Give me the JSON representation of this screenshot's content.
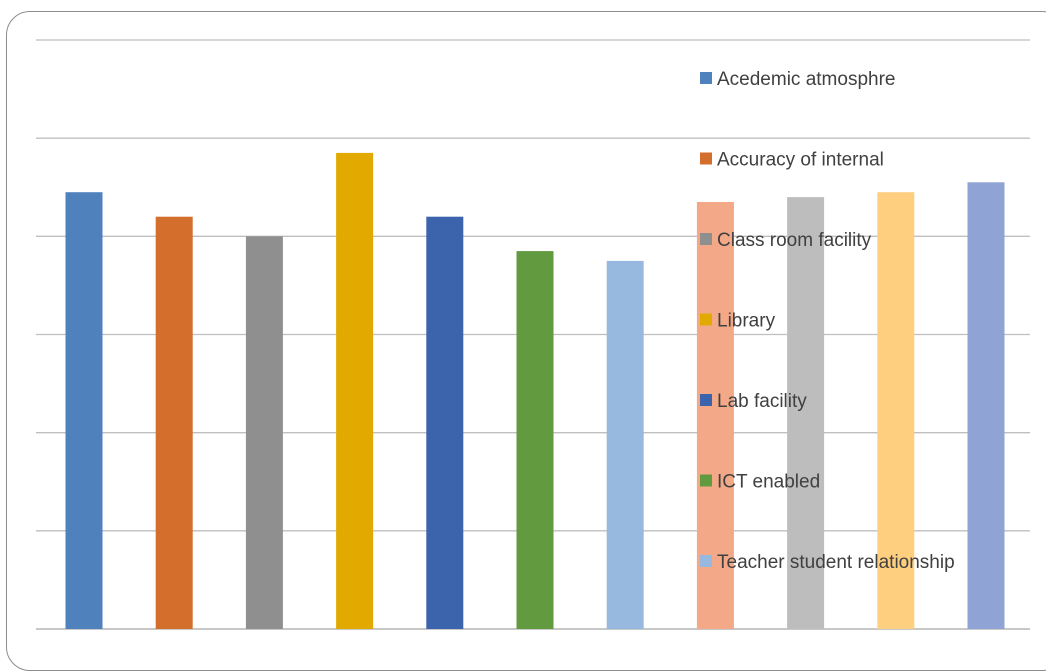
{
  "chart_data": {
    "type": "bar",
    "title": "",
    "xlabel": "",
    "ylabel": "",
    "ylim": [
      0,
      6
    ],
    "grid": true,
    "legend_position": "right-overlay",
    "series": [
      {
        "name": "Acedemic atmosphre",
        "value": 4.45,
        "color": "#4f81bd"
      },
      {
        "name": "Accuracy of internal",
        "value": 4.2,
        "color": "#d46e2c"
      },
      {
        "name": "Class room facility",
        "value": 4.0,
        "color": "#8f8f8f"
      },
      {
        "name": "Library",
        "value": 4.85,
        "color": "#e2aa00"
      },
      {
        "name": "Lab facility",
        "value": 4.2,
        "color": "#3b64ad"
      },
      {
        "name": "ICT enabled",
        "value": 3.85,
        "color": "#619a3f"
      },
      {
        "name": "Teacher student relationship",
        "value": 3.75,
        "color": "#97b9e0"
      },
      {
        "name": "",
        "value": 4.35,
        "color": "#f3a987"
      },
      {
        "name": "",
        "value": 4.4,
        "color": "#bdbdbd"
      },
      {
        "name": "",
        "value": 4.45,
        "color": "#ffcf80"
      },
      {
        "name": "",
        "value": 4.55,
        "color": "#8fa3d5"
      }
    ]
  }
}
